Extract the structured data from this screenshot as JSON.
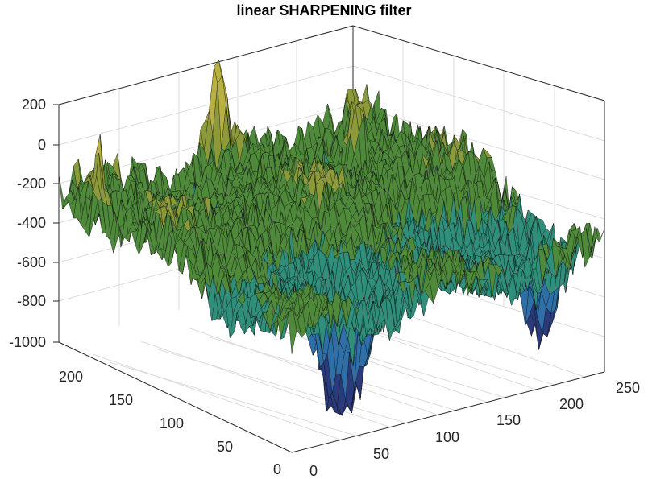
{
  "chart_data": {
    "type": "surface",
    "title": "linear SHARPENING filter",
    "xlabel": "",
    "ylabel": "",
    "zlabel": "",
    "xlim": [
      0,
      250
    ],
    "ylim": [
      0,
      250
    ],
    "zlim": [
      -1000,
      250
    ],
    "x_ticks": [
      "0",
      "50",
      "100",
      "150",
      "200",
      "250"
    ],
    "y_ticks": [
      "0",
      "50",
      "100",
      "150",
      "200"
    ],
    "z_ticks": [
      "-1000",
      "-800",
      "-600",
      "-400",
      "-200",
      "0",
      "200"
    ],
    "grid": true,
    "colormap": [
      "#2a3a7a",
      "#2f6fa8",
      "#2f8f7a",
      "#4e8a3a",
      "#8c9a3a",
      "#b8b040"
    ],
    "surface": {
      "grid_size": [
        256,
        256
      ],
      "z_range": [
        -960,
        180
      ],
      "typical_level": -350,
      "features": [
        {
          "type": "spike",
          "x": 125,
          "y": 245,
          "z": 180
        },
        {
          "type": "spike",
          "x": 200,
          "y": 200,
          "z": 120
        },
        {
          "type": "spike",
          "x": 2,
          "y": 210,
          "z": 60
        },
        {
          "type": "trough",
          "x": 70,
          "y": 40,
          "z": -960
        },
        {
          "type": "trough",
          "x": 230,
          "y": 40,
          "z": -820
        }
      ]
    }
  }
}
